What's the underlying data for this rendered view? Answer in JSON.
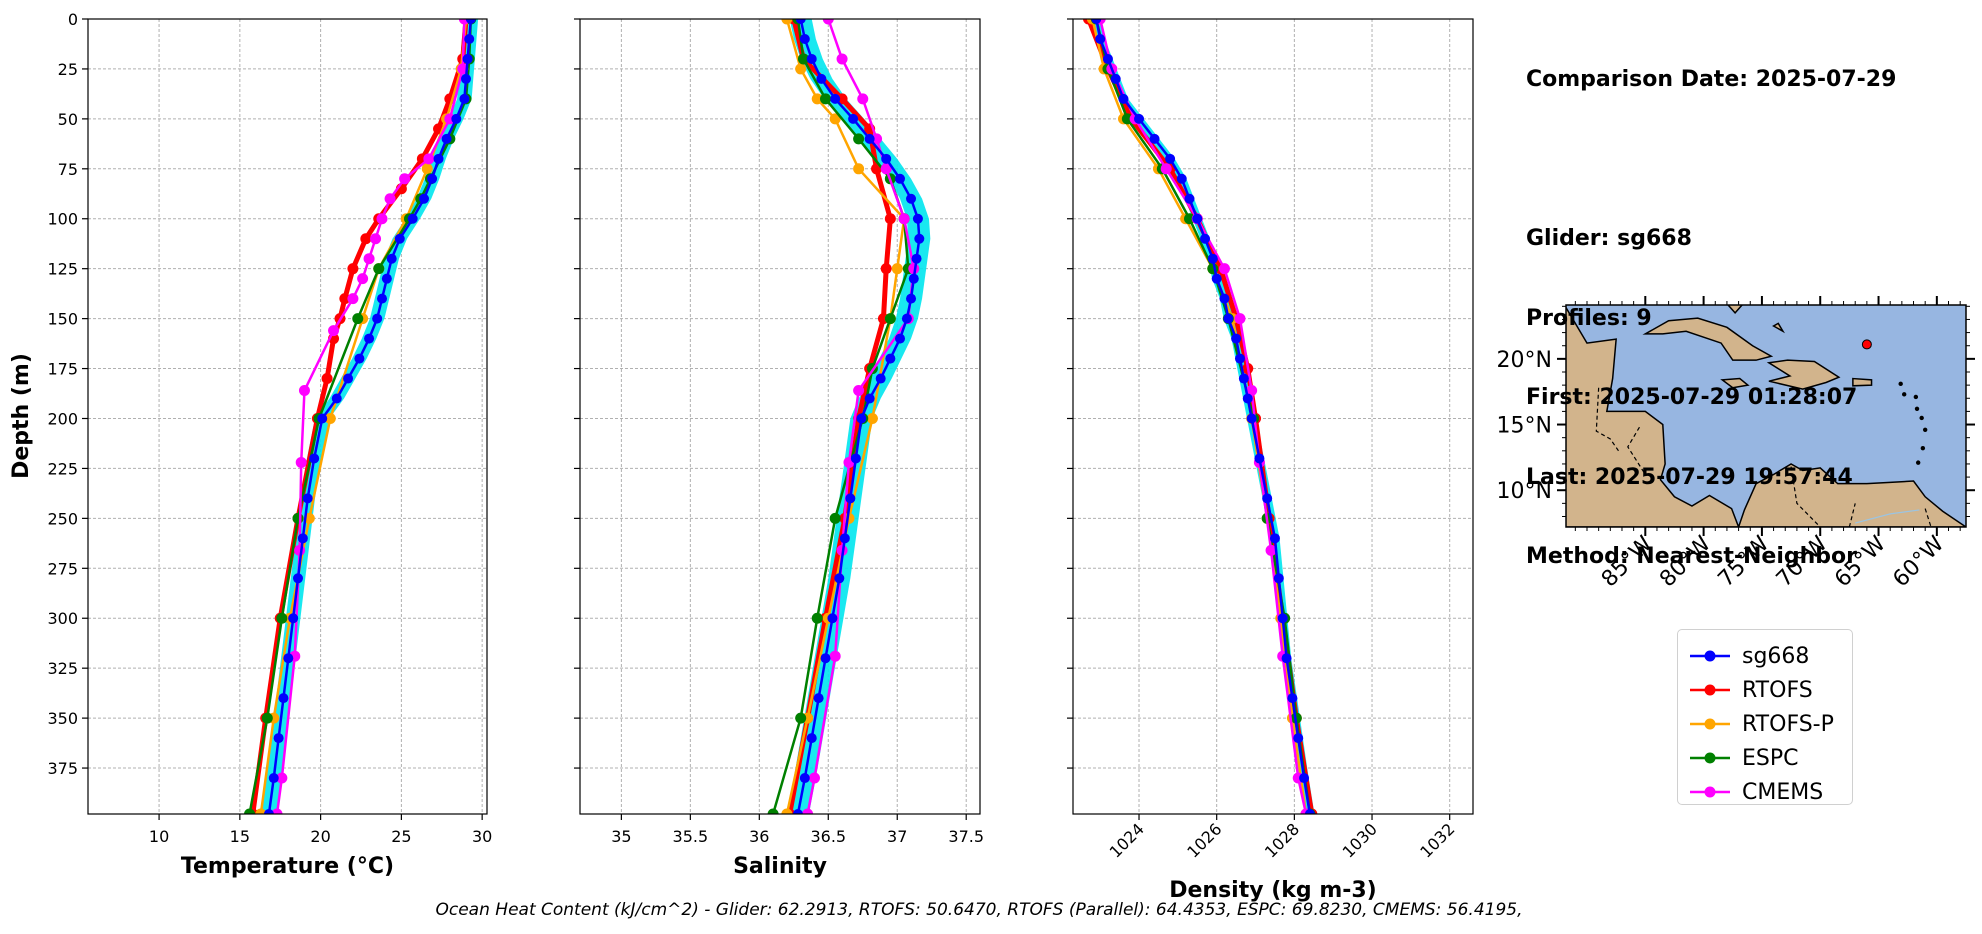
{
  "info": {
    "comparison_date": "Comparison Date: 2025-07-29",
    "glider": "Glider: sg668",
    "profiles": "Profiles: 9",
    "first": "First: 2025-07-29 01:28:07",
    "last": "Last: 2025-07-29 19:57:44",
    "method": "Method: Nearest-Neighbor"
  },
  "footer": "Ocean Heat Content (kJ/cm^2) - Glider: 62.2913,  RTOFS: 50.6470,  RTOFS (Parallel): 64.4353,  ESPC: 69.8230,  CMEMS: 56.4195,",
  "colors": {
    "sg668": "#0000ff",
    "RTOFS": "#ff0000",
    "RTOFS-P": "#ffa500",
    "ESPC": "#008000",
    "CMEMS": "#ff00ff",
    "glider_spread": "#00e5ee",
    "ocean": "#97b6e1",
    "land": "#d2b48c"
  },
  "legend": [
    {
      "name": "sg668",
      "color": "#0000ff"
    },
    {
      "name": "RTOFS",
      "color": "#ff0000"
    },
    {
      "name": "RTOFS-P",
      "color": "#ffa500"
    },
    {
      "name": "ESPC",
      "color": "#008000"
    },
    {
      "name": "CMEMS",
      "color": "#ff00ff"
    }
  ],
  "chart_data": [
    {
      "type": "line",
      "xlabel": "Temperature (°C)",
      "ylabel": "Depth (m)",
      "xlim": [
        5.6,
        30.3
      ],
      "ylim": [
        398,
        0
      ],
      "xticks": [
        10,
        15,
        20,
        25,
        30
      ],
      "yticks": [
        0,
        25,
        50,
        75,
        100,
        125,
        150,
        175,
        200,
        225,
        250,
        275,
        300,
        325,
        350,
        375
      ],
      "grid": true,
      "series": [
        {
          "name": "sg668",
          "depth": [
            0,
            10,
            20,
            30,
            40,
            50,
            60,
            70,
            80,
            90,
            100,
            110,
            120,
            130,
            140,
            150,
            160,
            170,
            180,
            190,
            200,
            220,
            240,
            260,
            280,
            300,
            320,
            340,
            360,
            380,
            398
          ],
          "values": [
            29.3,
            29.2,
            29.1,
            29.0,
            28.9,
            28.4,
            27.8,
            27.3,
            26.9,
            26.4,
            25.7,
            24.9,
            24.4,
            24.1,
            23.8,
            23.5,
            23.0,
            22.4,
            21.7,
            21.0,
            20.1,
            19.6,
            19.2,
            18.9,
            18.6,
            18.3,
            18.0,
            17.7,
            17.4,
            17.1,
            16.8
          ]
        },
        {
          "name": "RTOFS",
          "depth": [
            0,
            20,
            40,
            55,
            70,
            85,
            100,
            110,
            125,
            140,
            150,
            160,
            180,
            200,
            250,
            300,
            350,
            398
          ],
          "values": [
            29.0,
            28.8,
            28.0,
            27.3,
            26.3,
            25.0,
            23.6,
            22.8,
            22.0,
            21.5,
            21.2,
            20.8,
            20.4,
            19.8,
            18.6,
            17.5,
            16.6,
            15.8
          ]
        },
        {
          "name": "RTOFS-P",
          "depth": [
            0,
            25,
            50,
            75,
            100,
            125,
            150,
            200,
            250,
            300,
            350,
            398
          ],
          "values": [
            29.0,
            28.7,
            27.8,
            26.6,
            25.3,
            23.6,
            22.6,
            20.6,
            19.3,
            18.1,
            17.1,
            16.3
          ]
        },
        {
          "name": "ESPC",
          "depth": [
            0,
            20,
            40,
            60,
            80,
            90,
            100,
            125,
            150,
            200,
            250,
            300,
            350,
            398
          ],
          "values": [
            29.3,
            29.2,
            29.0,
            28.0,
            26.8,
            26.2,
            25.5,
            23.6,
            22.3,
            19.9,
            18.6,
            17.6,
            16.7,
            15.6
          ]
        },
        {
          "name": "CMEMS",
          "depth": [
            0,
            25,
            50,
            70,
            80,
            90,
            100,
            110,
            120,
            130,
            140,
            156,
            186,
            222,
            266,
            319,
            380,
            398
          ],
          "values": [
            28.9,
            28.8,
            28.0,
            26.7,
            25.2,
            24.3,
            23.8,
            23.4,
            23.0,
            22.6,
            22.0,
            20.8,
            19.0,
            18.8,
            18.7,
            18.4,
            17.6,
            17.3
          ]
        }
      ]
    },
    {
      "type": "line",
      "xlabel": "Salinity",
      "xlim": [
        34.7,
        37.6
      ],
      "ylim": [
        398,
        0
      ],
      "xticks": [
        35.0,
        35.5,
        36.0,
        36.5,
        37.0,
        37.5
      ],
      "grid": true,
      "series": [
        {
          "name": "sg668",
          "depth": [
            0,
            10,
            20,
            30,
            40,
            50,
            60,
            70,
            80,
            90,
            100,
            110,
            120,
            130,
            140,
            150,
            160,
            170,
            180,
            190,
            200,
            220,
            240,
            260,
            280,
            300,
            320,
            340,
            360,
            380,
            398
          ],
          "values": [
            36.3,
            36.33,
            36.38,
            36.45,
            36.55,
            36.68,
            36.8,
            36.92,
            37.02,
            37.1,
            37.15,
            37.16,
            37.14,
            37.12,
            37.1,
            37.07,
            37.02,
            36.95,
            36.88,
            36.8,
            36.74,
            36.7,
            36.66,
            36.62,
            36.58,
            36.53,
            36.48,
            36.43,
            36.38,
            36.33,
            36.28
          ]
        },
        {
          "name": "RTOFS",
          "depth": [
            0,
            20,
            40,
            55,
            75,
            100,
            125,
            150,
            175,
            200,
            250,
            300,
            350,
            398
          ],
          "values": [
            36.25,
            36.32,
            36.6,
            36.8,
            36.85,
            36.95,
            36.92,
            36.9,
            36.8,
            36.72,
            36.62,
            36.48,
            36.35,
            36.22
          ]
        },
        {
          "name": "RTOFS-P",
          "depth": [
            0,
            25,
            40,
            50,
            75,
            100,
            125,
            150,
            200,
            250,
            300,
            350,
            398
          ],
          "values": [
            36.2,
            36.3,
            36.42,
            36.55,
            36.72,
            37.05,
            37.0,
            36.95,
            36.82,
            36.65,
            36.5,
            36.35,
            36.2
          ]
        },
        {
          "name": "ESPC",
          "depth": [
            0,
            20,
            40,
            60,
            80,
            100,
            125,
            150,
            175,
            200,
            250,
            300,
            350,
            398
          ],
          "values": [
            36.28,
            36.32,
            36.48,
            36.72,
            36.95,
            37.05,
            37.08,
            36.95,
            36.82,
            36.75,
            36.55,
            36.42,
            36.3,
            36.1
          ]
        },
        {
          "name": "CMEMS",
          "depth": [
            0,
            20,
            40,
            60,
            75,
            100,
            125,
            150,
            186,
            222,
            266,
            319,
            380,
            398
          ],
          "values": [
            36.5,
            36.6,
            36.75,
            36.85,
            36.92,
            37.05,
            37.12,
            37.08,
            36.72,
            36.65,
            36.6,
            36.55,
            36.4,
            36.35
          ]
        }
      ]
    },
    {
      "type": "line",
      "xlabel": "Density (kg m-3)",
      "xlim": [
        1022.3,
        1032.6
      ],
      "ylim": [
        398,
        0
      ],
      "xticks": [
        1024,
        1026,
        1028,
        1030,
        1032
      ],
      "grid": true,
      "series": [
        {
          "name": "sg668",
          "depth": [
            0,
            10,
            20,
            30,
            40,
            50,
            60,
            70,
            80,
            90,
            100,
            110,
            120,
            130,
            140,
            150,
            160,
            170,
            180,
            190,
            200,
            220,
            240,
            260,
            280,
            300,
            320,
            340,
            360,
            380,
            398
          ],
          "values": [
            1022.9,
            1023.0,
            1023.2,
            1023.4,
            1023.6,
            1024.0,
            1024.4,
            1024.8,
            1025.1,
            1025.3,
            1025.5,
            1025.7,
            1025.9,
            1026.0,
            1026.2,
            1026.3,
            1026.5,
            1026.6,
            1026.7,
            1026.8,
            1026.9,
            1027.1,
            1027.3,
            1027.5,
            1027.6,
            1027.7,
            1027.8,
            1027.95,
            1028.1,
            1028.25,
            1028.4
          ]
        },
        {
          "name": "RTOFS",
          "depth": [
            0,
            25,
            50,
            75,
            100,
            125,
            150,
            175,
            200,
            250,
            300,
            350,
            398
          ],
          "values": [
            1022.7,
            1023.2,
            1023.8,
            1024.8,
            1025.5,
            1026.1,
            1026.5,
            1026.8,
            1027.0,
            1027.35,
            1027.7,
            1028.05,
            1028.45
          ]
        },
        {
          "name": "RTOFS-P",
          "depth": [
            0,
            25,
            50,
            75,
            100,
            125,
            150,
            200,
            250,
            300,
            350,
            398
          ],
          "values": [
            1022.8,
            1023.1,
            1023.6,
            1024.5,
            1025.2,
            1025.9,
            1026.4,
            1026.9,
            1027.3,
            1027.65,
            1027.95,
            1028.3
          ]
        },
        {
          "name": "ESPC",
          "depth": [
            0,
            25,
            50,
            75,
            100,
            125,
            150,
            200,
            250,
            300,
            350,
            398
          ],
          "values": [
            1022.9,
            1023.2,
            1023.7,
            1024.6,
            1025.3,
            1025.9,
            1026.3,
            1026.95,
            1027.3,
            1027.75,
            1028.05,
            1028.4
          ]
        },
        {
          "name": "CMEMS",
          "depth": [
            0,
            25,
            50,
            75,
            100,
            125,
            150,
            186,
            222,
            266,
            319,
            380,
            398
          ],
          "values": [
            1023.0,
            1023.3,
            1023.9,
            1024.7,
            1025.5,
            1026.2,
            1026.6,
            1026.9,
            1027.1,
            1027.4,
            1027.7,
            1028.1,
            1028.3
          ]
        }
      ]
    },
    {
      "type": "map",
      "lon_range": [
        -91.8,
        -57.5
      ],
      "lat_range": [
        7.2,
        24.1
      ],
      "xticks": [
        -85,
        -80,
        -75,
        -70,
        -65,
        -60
      ],
      "xtick_labels": [
        "85°W",
        "80°W",
        "75°W",
        "70°W",
        "65°W",
        "60°W"
      ],
      "yticks": [
        10,
        15,
        20
      ],
      "ytick_labels": [
        "10°N",
        "15°N",
        "20°N"
      ],
      "glider_position": {
        "lon": -66.0,
        "lat": 21.1
      }
    }
  ]
}
